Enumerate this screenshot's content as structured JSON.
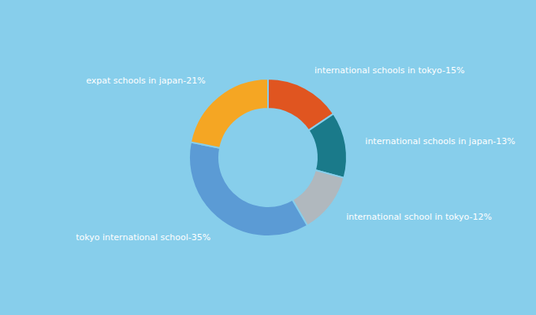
{
  "chart_data": {
    "type": "donut",
    "categories": [
      "international schools in tokyo",
      "international schools in japan",
      "international school in tokyo",
      "tokyo international school",
      "expat schools in japan"
    ],
    "values": [
      15,
      13,
      12,
      35,
      21
    ],
    "value_labels": [
      "international schools in tokyo-15%",
      "international schools in japan-13%",
      "international school in tokyo-12%",
      "tokyo international school-35%",
      "expat schools in japan-21%"
    ],
    "colors": [
      "#e05520",
      "#1a7a8a",
      "#b0b8be",
      "#5b9bd5",
      "#f5a623"
    ],
    "data_labels": true
  }
}
